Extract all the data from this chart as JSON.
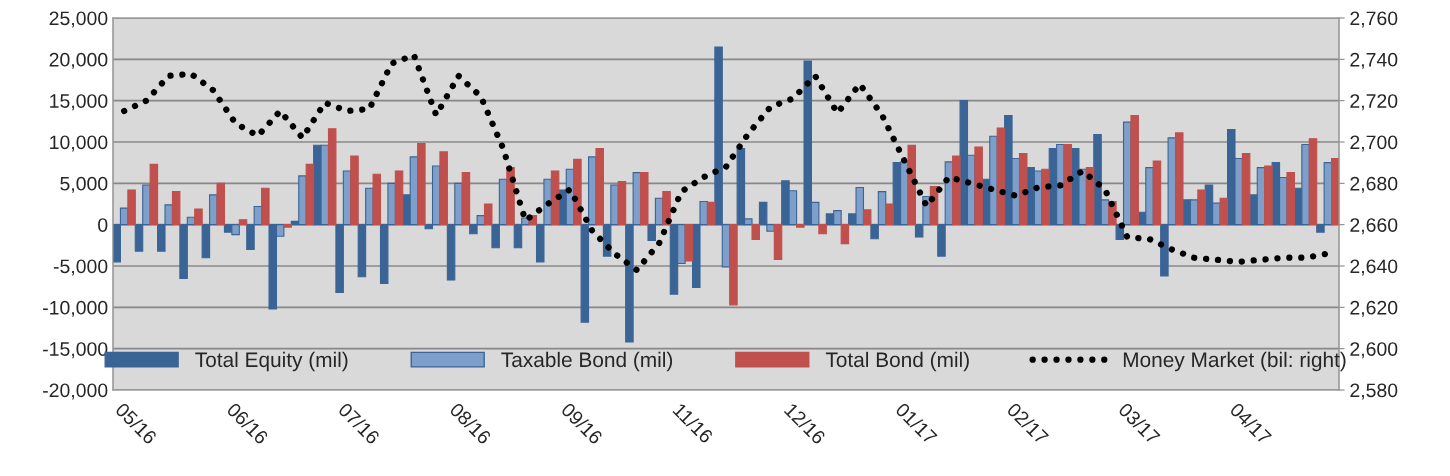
{
  "chart_data": {
    "type": "bar",
    "categories": [
      "05/16",
      null,
      null,
      null,
      null,
      "06/16",
      null,
      null,
      null,
      null,
      "07/16",
      null,
      null,
      null,
      null,
      "08/16",
      null,
      null,
      null,
      null,
      "09/16",
      null,
      null,
      null,
      null,
      "11/16",
      null,
      null,
      null,
      null,
      "12/16",
      null,
      null,
      null,
      null,
      "01/17",
      null,
      null,
      null,
      null,
      "02/17",
      null,
      null,
      null,
      null,
      "03/17",
      null,
      null,
      null,
      null,
      "04/17",
      null,
      null,
      null,
      null
    ],
    "series": [
      {
        "name": "Total Equity (mil)",
        "color": "#3b6496",
        "values": [
          -4500,
          -3200,
          -3200,
          -6500,
          -4000,
          -900,
          -3000,
          -10200,
          400,
          9600,
          -8200,
          -6300,
          -7100,
          3600,
          -500,
          -6700,
          -1100,
          -2800,
          -2800,
          -4500,
          4200,
          -11800,
          -3800,
          -14200,
          -1900,
          -8400,
          -7600,
          21500,
          9200,
          2700,
          5300,
          19800,
          1300,
          1300,
          -1700,
          7500,
          -1500,
          -3800,
          15000,
          5500,
          13200,
          6900,
          9200,
          9200,
          10900,
          -1800,
          1500,
          -6200,
          3000,
          4800,
          11500,
          3600,
          7500,
          4400,
          -900
        ]
      },
      {
        "name": "Taxable Bond (mil)",
        "color": "#7f9fcb",
        "values": [
          2000,
          4800,
          2400,
          900,
          3600,
          -1200,
          2200,
          -1400,
          5900,
          9600,
          6500,
          4400,
          5000,
          8200,
          7100,
          5000,
          1100,
          5500,
          800,
          5500,
          6700,
          8200,
          4800,
          6300,
          3200,
          -4700,
          2800,
          -5100,
          700,
          -800,
          4100,
          2700,
          1700,
          4500,
          4000,
          7600,
          3400,
          7600,
          8400,
          10700,
          8000,
          6500,
          9700,
          6700,
          3000,
          12400,
          6900,
          10500,
          3000,
          2600,
          8000,
          6900,
          5700,
          9700,
          7500
        ]
      },
      {
        "name": "Total Bond (mil)",
        "color": "#c0504d",
        "values": [
          4200,
          7300,
          4000,
          1900,
          5000,
          600,
          4400,
          -300,
          7300,
          11600,
          8300,
          6100,
          6500,
          9800,
          8800,
          6300,
          2500,
          6900,
          1100,
          6500,
          7900,
          9200,
          5200,
          6300,
          4000,
          -4400,
          2700,
          -9700,
          -1800,
          -4200,
          -300,
          -1100,
          -2300,
          1800,
          2500,
          9600,
          4600,
          8300,
          9400,
          11700,
          8600,
          6700,
          9700,
          6900,
          2800,
          13200,
          7700,
          11100,
          4200,
          3200,
          8600,
          7100,
          6300,
          10400,
          8000
        ]
      },
      {
        "name": "Money Market (bil: right)",
        "type": "line",
        "axis": "y2",
        "color": "#000000",
        "line_style": "dotted",
        "values": [
          2715,
          2720,
          2732,
          2733,
          2725,
          2709,
          2703,
          2715,
          2702,
          2719,
          2715,
          2716,
          2738,
          2742,
          2713,
          2732,
          2722,
          2697,
          2662,
          2670,
          2677,
          2657,
          2646,
          2638,
          2651,
          2676,
          2683,
          2688,
          2704,
          2717,
          2721,
          2732,
          2714,
          2728,
          2713,
          2691,
          2669,
          2683,
          2680,
          2677,
          2674,
          2678,
          2679,
          2686,
          2677,
          2654,
          2653,
          2648,
          2644,
          2643,
          2642,
          2643,
          2644,
          2644,
          2646
        ]
      }
    ],
    "ylim": [
      -20000,
      25000
    ],
    "yticks": [
      {
        "value": -20000,
        "label": "-20,000"
      },
      {
        "value": -15000,
        "label": "-15,000"
      },
      {
        "value": -10000,
        "label": "-10,000"
      },
      {
        "value": -5000,
        "label": "-5,000"
      },
      0,
      {
        "value": 5000,
        "label": "5,000"
      },
      {
        "value": 10000,
        "label": "10,000"
      },
      {
        "value": 15000,
        "label": "15,000"
      },
      {
        "value": 20000,
        "label": "20,000"
      },
      {
        "value": 25000,
        "label": "25,000"
      }
    ],
    "y2lim": [
      2580,
      2760
    ],
    "y2ticks": [
      {
        "value": 2580,
        "label": "2,580"
      },
      {
        "value": 2600,
        "label": "2,600"
      },
      {
        "value": 2620,
        "label": "2,620"
      },
      {
        "value": 2640,
        "label": "2,640"
      },
      {
        "value": 2660,
        "label": "2,660"
      },
      {
        "value": 2680,
        "label": "2,680"
      },
      {
        "value": 2700,
        "label": "2,700"
      },
      {
        "value": 2720,
        "label": "2,720"
      },
      {
        "value": 2740,
        "label": "2,740"
      },
      {
        "value": 2760,
        "label": "2,760"
      }
    ],
    "grid": "y",
    "legend": "bottom"
  }
}
